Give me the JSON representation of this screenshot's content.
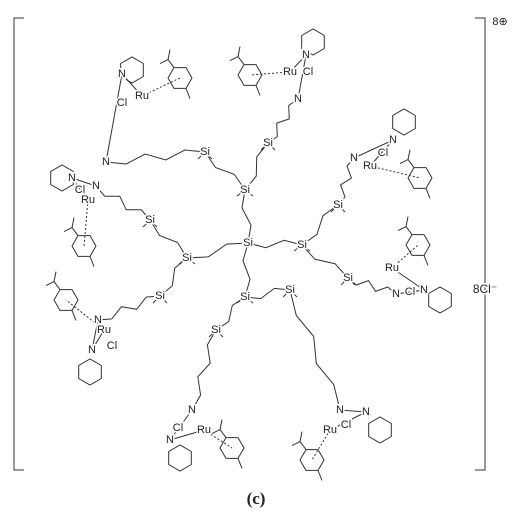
{
  "charge": "8⊕",
  "counterion": "8Cl⁻",
  "caption": "(c)",
  "core": {
    "center": "Si",
    "inner": [
      "Si",
      "Si",
      "Si",
      "Si"
    ]
  },
  "arms": [
    {
      "si": "Si",
      "n": "N",
      "ru": "Ru",
      "cl": "Cl",
      "n_py": "N"
    },
    {
      "si": "Si",
      "n": "N",
      "ru": "Ru",
      "cl": "Cl",
      "n_py": "N"
    },
    {
      "si": "Si",
      "n": "N",
      "ru": "Ru",
      "cl": "Cl",
      "n_py": "N"
    },
    {
      "si": "Si",
      "n": "N",
      "ru": "Ru",
      "cl": "Cl",
      "n_py": "N"
    },
    {
      "si": "Si",
      "n": "N",
      "ru": "Ru",
      "cl": "Cl",
      "n_py": "N"
    },
    {
      "si": "Si",
      "n": "N",
      "ru": "Ru",
      "cl": "Cl",
      "n_py": "N"
    },
    {
      "si": "Si",
      "n": "N",
      "ru": "Ru",
      "cl": "Cl",
      "n_py": "N"
    },
    {
      "si": "Si",
      "n": "N",
      "ru": "Ru",
      "cl": "Cl",
      "n_py": "N"
    }
  ]
}
